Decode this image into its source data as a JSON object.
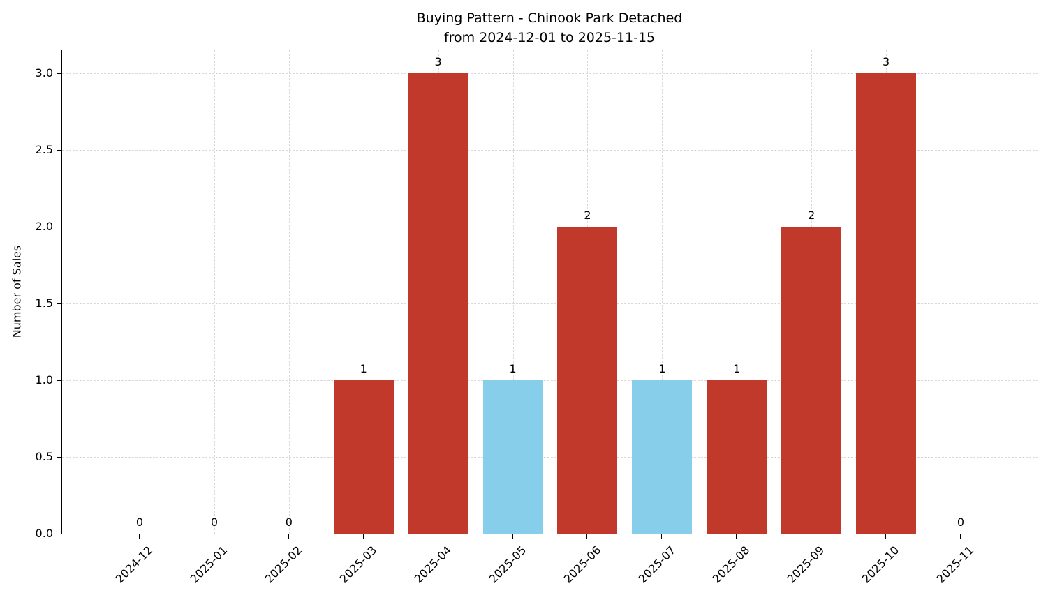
{
  "chart_data": {
    "type": "bar",
    "title": "Buying Pattern - Chinook Park Detached",
    "subtitle": "from 2024-12-01 to 2025-11-15",
    "xlabel": "",
    "ylabel": "Number of Sales",
    "categories": [
      "2024-12",
      "2025-01",
      "2025-02",
      "2025-03",
      "2025-04",
      "2025-05",
      "2025-06",
      "2025-07",
      "2025-08",
      "2025-09",
      "2025-10",
      "2025-11"
    ],
    "values": [
      0,
      0,
      0,
      1,
      3,
      1,
      2,
      1,
      1,
      2,
      3,
      0
    ],
    "bar_colors": [
      "#c0392b",
      "#c0392b",
      "#c0392b",
      "#c0392b",
      "#c0392b",
      "#87ceeb",
      "#c0392b",
      "#87ceeb",
      "#c0392b",
      "#c0392b",
      "#c0392b",
      "#c0392b"
    ],
    "bar_value_labels": [
      "0",
      "0",
      "0",
      "1",
      "3",
      "1",
      "2",
      "1",
      "1",
      "2",
      "3",
      "0"
    ],
    "yticks": [
      0.0,
      0.5,
      1.0,
      1.5,
      2.0,
      2.5,
      3.0
    ],
    "ytick_labels": [
      "0.0",
      "0.5",
      "1.0",
      "1.5",
      "2.0",
      "2.5",
      "3.0"
    ],
    "ylim": [
      0,
      3.15
    ],
    "grid": "dashed",
    "grid_color": "#d9d9d9",
    "legend": "none",
    "colors": {
      "bar_default": "#c0392b",
      "bar_highlight": "#87ceeb",
      "axis": "#000000",
      "background": "#ffffff"
    }
  }
}
